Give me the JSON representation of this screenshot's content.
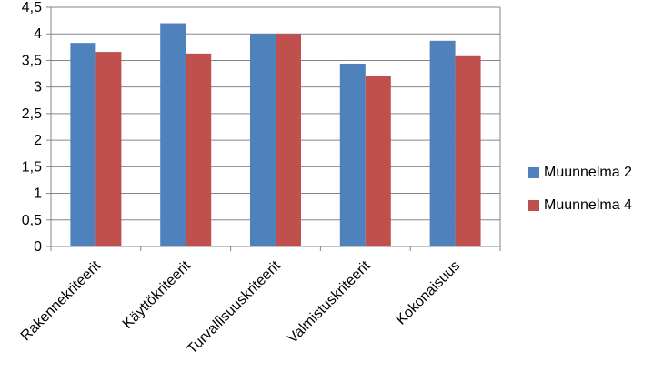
{
  "chart_data": {
    "type": "bar",
    "categories": [
      "Rakennekriteerit",
      "Käyttökriteerit",
      "Turvallisuuskriteerit",
      "Valmistuskriteerit",
      "Kokonaisuus"
    ],
    "series": [
      {
        "name": "Muunnelma 2",
        "color": "#4F81BD",
        "values": [
          3.83,
          4.2,
          4.0,
          3.44,
          3.87
        ]
      },
      {
        "name": "Muunnelma 4",
        "color": "#C0504D",
        "values": [
          3.66,
          3.63,
          4.0,
          3.2,
          3.58
        ]
      }
    ],
    "ylim": [
      0,
      4.5
    ],
    "y_ticks": [
      "0",
      "0,5",
      "1",
      "1,5",
      "2",
      "2,5",
      "3",
      "3,5",
      "4",
      "4,5"
    ],
    "grid": true,
    "legend_position": "right"
  }
}
